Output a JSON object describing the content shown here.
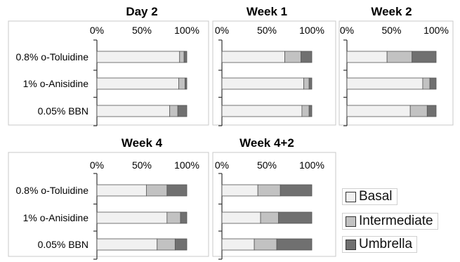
{
  "chart_data": {
    "type": "bar",
    "stacked": true,
    "orientation": "horizontal",
    "categories": [
      "0.8% o-Toluidine",
      "1% o-Anisidine",
      "0.05% BBN"
    ],
    "x_ticks": [
      "0%",
      "50%",
      "100%"
    ],
    "xlim": [
      0,
      100
    ],
    "series_names": [
      "Basal",
      "Intermediate",
      "Umbrella"
    ],
    "colors": {
      "Basal": "#f1f1f1",
      "Intermediate": "#c2c2c2",
      "Umbrella": "#707070"
    },
    "legend": "right",
    "grid": false,
    "panels": [
      {
        "title": "Day 2",
        "series": [
          {
            "name": "Basal",
            "values": [
              92,
              91,
              81
            ]
          },
          {
            "name": "Intermediate",
            "values": [
              5,
              7,
              9
            ]
          },
          {
            "name": "Umbrella",
            "values": [
              3,
              2,
              10
            ]
          }
        ]
      },
      {
        "title": "Week 1",
        "series": [
          {
            "name": "Basal",
            "values": [
              70,
              91,
              89
            ]
          },
          {
            "name": "Intermediate",
            "values": [
              18,
              6,
              8
            ]
          },
          {
            "name": "Umbrella",
            "values": [
              12,
              3,
              3
            ]
          }
        ]
      },
      {
        "title": "Week 2",
        "series": [
          {
            "name": "Basal",
            "values": [
              45,
              85,
              71
            ]
          },
          {
            "name": "Intermediate",
            "values": [
              28,
              8,
              19
            ]
          },
          {
            "name": "Umbrella",
            "values": [
              27,
              7,
              10
            ]
          }
        ]
      },
      {
        "title": "Week 4",
        "series": [
          {
            "name": "Basal",
            "values": [
              55,
              78,
              67
            ]
          },
          {
            "name": "Intermediate",
            "values": [
              23,
              15,
              20
            ]
          },
          {
            "name": "Umbrella",
            "values": [
              22,
              7,
              13
            ]
          }
        ]
      },
      {
        "title": "Week 4+2",
        "series": [
          {
            "name": "Basal",
            "values": [
              40,
              43,
              36
            ]
          },
          {
            "name": "Intermediate",
            "values": [
              25,
              20,
              25
            ]
          },
          {
            "name": "Umbrella",
            "values": [
              35,
              37,
              39
            ]
          }
        ]
      }
    ]
  }
}
